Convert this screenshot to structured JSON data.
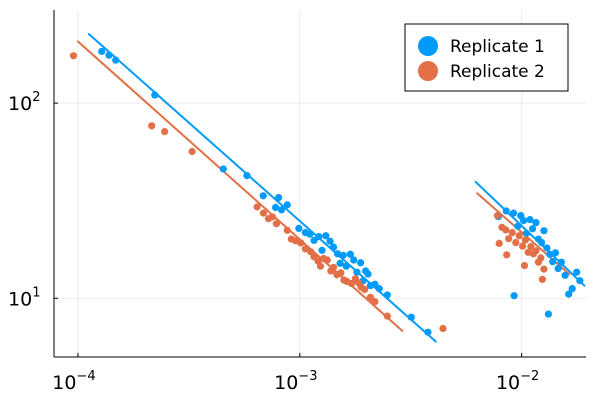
{
  "chart_data": {
    "type": "scatter",
    "title": "",
    "xlabel": "",
    "ylabel": "",
    "x_scale": "log",
    "y_scale": "log",
    "xlim": [
      7.8e-05,
      0.0195
    ],
    "ylim": [
      5.0,
      300
    ],
    "grid": true,
    "legend_position": "top-right",
    "x_ticks": [
      {
        "base": "10",
        "exp": "−4",
        "value": 0.0001
      },
      {
        "base": "10",
        "exp": "−3",
        "value": 0.001
      },
      {
        "base": "10",
        "exp": "−2",
        "value": 0.01
      }
    ],
    "y_ticks": [
      {
        "base": "10",
        "exp": "1",
        "value": 10
      },
      {
        "base": "10",
        "exp": "2",
        "value": 100
      }
    ],
    "series": [
      {
        "name": "Replicate 1",
        "color": "#009AFA",
        "points": [
          [
            0.000128,
            184
          ],
          [
            0.000138,
            176
          ],
          [
            0.000148,
            166
          ],
          [
            0.000222,
            110
          ],
          [
            0.000452,
            46
          ],
          [
            0.000578,
            42.5
          ],
          [
            0.000684,
            33.5
          ],
          [
            0.000778,
            29.2
          ],
          [
            0.000803,
            32.8
          ],
          [
            0.000827,
            28.4
          ],
          [
            0.000878,
            30.1
          ],
          [
            0.00099,
            22.8
          ],
          [
            0.00106,
            21.7
          ],
          [
            0.00111,
            21.3
          ],
          [
            0.00116,
            19.8
          ],
          [
            0.00122,
            20.7
          ],
          [
            0.00126,
            17.6
          ],
          [
            0.00131,
            20.9
          ],
          [
            0.00137,
            19.6
          ],
          [
            0.00142,
            18.3
          ],
          [
            0.00148,
            16.9
          ],
          [
            0.00152,
            15.1
          ],
          [
            0.00157,
            16.6
          ],
          [
            0.00162,
            14.6
          ],
          [
            0.00169,
            16.8
          ],
          [
            0.00175,
            15.7
          ],
          [
            0.00181,
            13.6
          ],
          [
            0.00188,
            15.2
          ],
          [
            0.00193,
            12.3
          ],
          [
            0.00198,
            13.8
          ],
          [
            0.00203,
            13.3
          ],
          [
            0.00208,
            11.6
          ],
          [
            0.00218,
            11.8
          ],
          [
            0.00228,
            11.2
          ],
          [
            0.00248,
            10.4
          ],
          [
            0.00318,
            8.0
          ],
          [
            0.00378,
            6.7
          ],
          [
            0.00785,
            26.2
          ],
          [
            0.00852,
            28.0
          ],
          [
            0.00919,
            27.3
          ],
          [
            0.00961,
            23.4
          ],
          [
            0.00991,
            26.5
          ],
          [
            0.0102,
            25.0
          ],
          [
            0.0105,
            21.5
          ],
          [
            0.0109,
            25.3
          ],
          [
            0.0112,
            22.7
          ],
          [
            0.0116,
            24.4
          ],
          [
            0.0119,
            20.1
          ],
          [
            0.0123,
            19.3
          ],
          [
            0.0126,
            22.2
          ],
          [
            0.013,
            18.1
          ],
          [
            0.0134,
            16.8
          ],
          [
            0.0138,
            15.4
          ],
          [
            0.0142,
            17.1
          ],
          [
            0.0146,
            14.2
          ],
          [
            0.0151,
            15.3
          ],
          [
            0.0157,
            13.1
          ],
          [
            0.0163,
            10.5
          ],
          [
            0.0169,
            11.2
          ],
          [
            0.0177,
            13.6
          ],
          [
            0.0183,
            12.3
          ],
          [
            0.0132,
            8.3
          ],
          [
            0.00925,
            10.3
          ]
        ],
        "fit": [
          [
            0.000112,
            226
          ],
          [
            0.0041,
            6.0
          ]
        ],
        "fit2": [
          [
            0.0062,
            39.5
          ],
          [
            0.0192,
            11.6
          ]
        ]
      },
      {
        "name": "Replicate 2",
        "color": "#E26F46",
        "points": [
          [
            9.55e-05,
            175
          ],
          [
            0.000215,
            76.5
          ],
          [
            0.000246,
            71.5
          ],
          [
            0.000327,
            56.5
          ],
          [
            0.000642,
            29.4
          ],
          [
            0.000686,
            27.3
          ],
          [
            0.000723,
            25.6
          ],
          [
            0.000752,
            26.1
          ],
          [
            0.000785,
            24.1
          ],
          [
            0.000878,
            22.3
          ],
          [
            0.000916,
            20.1
          ],
          [
            0.000957,
            19.7
          ],
          [
            0.00101,
            19.2
          ],
          [
            0.00106,
            17.9
          ],
          [
            0.00112,
            17.3
          ],
          [
            0.00116,
            16.3
          ],
          [
            0.00121,
            15.5
          ],
          [
            0.00124,
            14.6
          ],
          [
            0.00128,
            16.0
          ],
          [
            0.00133,
            15.7
          ],
          [
            0.00138,
            13.8
          ],
          [
            0.00142,
            14.4
          ],
          [
            0.00147,
            13.2
          ],
          [
            0.00153,
            13.5
          ],
          [
            0.00158,
            12.4
          ],
          [
            0.00163,
            12.2
          ],
          [
            0.00171,
            11.9
          ],
          [
            0.00178,
            12.6
          ],
          [
            0.00184,
            12.0
          ],
          [
            0.00189,
            11.4
          ],
          [
            0.00196,
            11.1
          ],
          [
            0.00208,
            10.1
          ],
          [
            0.00218,
            9.6
          ],
          [
            0.00248,
            8.1
          ],
          [
            0.00442,
            7.0
          ],
          [
            0.00778,
            26.5
          ],
          [
            0.00815,
            23.1
          ],
          [
            0.00848,
            22.4
          ],
          [
            0.00874,
            20.2
          ],
          [
            0.00907,
            21.7
          ],
          [
            0.00941,
            19.3
          ],
          [
            0.00975,
            20.9
          ],
          [
            0.0101,
            18.5
          ],
          [
            0.0104,
            19.9
          ],
          [
            0.0107,
            17.2
          ],
          [
            0.011,
            18.4
          ],
          [
            0.0113,
            16.9
          ],
          [
            0.0116,
            17.5
          ],
          [
            0.0119,
            15.3
          ],
          [
            0.0122,
            16.1
          ],
          [
            0.0126,
            14.1
          ],
          [
            0.0103,
            14.7
          ],
          [
            0.00856,
            16.7
          ],
          [
            0.00792,
            19.1
          ],
          [
            0.0124,
            12.5
          ]
        ],
        "fit": [
          [
            0.0001,
            207
          ],
          [
            0.0029,
            6.8
          ]
        ],
        "fit2": [
          [
            0.0063,
            34.5
          ],
          [
            0.0164,
            13.3
          ]
        ]
      }
    ]
  }
}
